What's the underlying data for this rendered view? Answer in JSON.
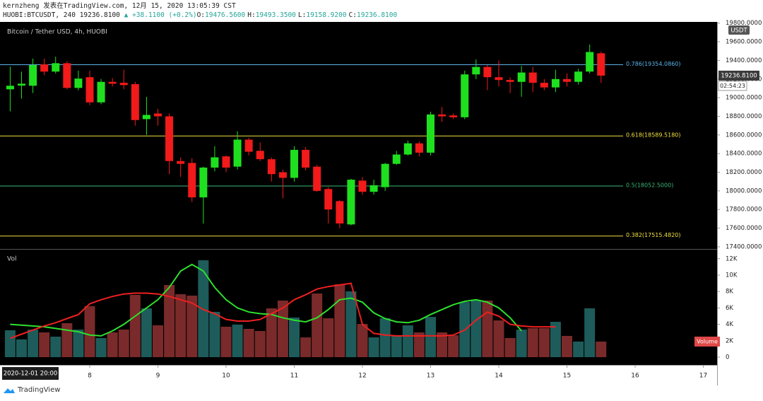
{
  "header": {
    "author_line": "kernzheng 发表在TradingView.com, 12月 15, 2020 13:05:39 CST",
    "symbol": "HUOBI:BTCUSDT, 240",
    "last": "19236.8100",
    "change": "▲ +38.1100 (+0.2%)",
    "ohlc": [
      {
        "label": "O:",
        "value": "19476.5600"
      },
      {
        "label": "H:",
        "value": "19493.3500"
      },
      {
        "label": "L:",
        "value": "19158.9200"
      },
      {
        "label": "C:",
        "value": "19236.8100"
      }
    ]
  },
  "chart_data": {
    "type": "candlestick",
    "title": "Bitcoin / Tether USD, 4h, HUOBI",
    "currency": "USDT",
    "up_color": "#1fe01f",
    "down_color": "#f21a1a",
    "x": [
      6.8333,
      7,
      7.1667,
      7.3333,
      7.5,
      7.6667,
      7.8333,
      8,
      8.1667,
      8.3333,
      8.5,
      8.6667,
      8.8333,
      9,
      9.1667,
      9.3333,
      9.5,
      9.6667,
      9.8333,
      10,
      10.1667,
      10.3333,
      10.5,
      10.6667,
      10.8333,
      11,
      11.1667,
      11.3333,
      11.5,
      11.6667,
      11.8333,
      12,
      12.1667,
      12.3333,
      12.5,
      12.6667,
      12.8333,
      13,
      13.1667,
      13.3333,
      13.5,
      13.6667,
      13.8333,
      14,
      14.1667,
      14.3333,
      14.5,
      14.6667,
      14.8333,
      15,
      15.1667,
      15.3333,
      15.5
    ],
    "open": [
      19090,
      19130,
      19128,
      19357,
      19280,
      19370,
      19105,
      19220,
      18950,
      19170,
      19160,
      19145,
      18770,
      18830,
      18800,
      18320,
      18300,
      17930,
      18250,
      18370,
      18260,
      18550,
      18430,
      18340,
      18200,
      18140,
      18440,
      18260,
      18020,
      17890,
      17640,
      18110,
      17990,
      18040,
      18290,
      18390,
      18510,
      18410,
      18820,
      18810,
      18790,
      19250,
      19330,
      19220,
      19190,
      19170,
      19270,
      19160,
      19110,
      19200,
      19170,
      19280,
      19476.56
    ],
    "high": [
      19334,
      19280,
      19420,
      19420,
      19440,
      19390,
      19290,
      19290,
      19200,
      19210,
      19300,
      19170,
      19010,
      18880,
      18830,
      18360,
      18350,
      18260,
      18480,
      18380,
      18640,
      18570,
      18520,
      18360,
      18230,
      18480,
      18470,
      18280,
      18040,
      17900,
      18130,
      18150,
      18120,
      18300,
      18430,
      18540,
      18530,
      18850,
      18900,
      18830,
      19290,
      19410,
      19350,
      19400,
      19220,
      19340,
      19330,
      19200,
      19300,
      19260,
      19310,
      19570,
      19493.35
    ],
    "low": [
      18854,
      18990,
      19050,
      19240,
      19260,
      19090,
      19080,
      18920,
      18930,
      19120,
      19090,
      18700,
      18600,
      18700,
      18180,
      18150,
      17880,
      17650,
      18210,
      18200,
      18230,
      18380,
      18320,
      18100,
      17920,
      18100,
      18220,
      17990,
      17650,
      17600,
      17630,
      17960,
      17960,
      18000,
      18280,
      18380,
      18370,
      18380,
      18740,
      18770,
      18770,
      19200,
      19080,
      19120,
      19050,
      19010,
      19060,
      19080,
      19060,
      19120,
      19140,
      19260,
      19158.92
    ],
    "close": [
      19128,
      19150,
      19350,
      19280,
      19370,
      19105,
      19205,
      18950,
      19170,
      19150,
      19135,
      18760,
      18815,
      18800,
      18320,
      18290,
      17930,
      18250,
      18360,
      18250,
      18550,
      18420,
      18340,
      18180,
      18140,
      18440,
      18250,
      18000,
      17800,
      17650,
      18120,
      17990,
      18060,
      18290,
      18390,
      18510,
      18410,
      18820,
      18800,
      18790,
      19250,
      19330,
      19220,
      19190,
      19170,
      19270,
      19160,
      19110,
      19200,
      19170,
      19280,
      19490,
      19236.81
    ],
    "last_label": "19236.8100",
    "countdown": "02:54:23",
    "crosshair_label": "2020-12-01  20:00",
    "xlim": [
      6.684,
      17.202
    ],
    "xticks": [
      8,
      9,
      10,
      11,
      12,
      13,
      14,
      15,
      16,
      17
    ],
    "ylim": [
      17392,
      19813
    ],
    "yticks": [
      {
        "value": 17400,
        "label": "17400.0000"
      },
      {
        "value": 17600,
        "label": "17600.0000"
      },
      {
        "value": 17800,
        "label": "17800.0000"
      },
      {
        "value": 18000,
        "label": "18000.0000"
      },
      {
        "value": 18200,
        "label": "18200.0000"
      },
      {
        "value": 18400,
        "label": "18400.0000"
      },
      {
        "value": 18600,
        "label": "18600.0000"
      },
      {
        "value": 18800,
        "label": "18800.0000"
      },
      {
        "value": 19000,
        "label": "19000.0000"
      },
      {
        "value": 19200,
        "label": "19200.0000"
      },
      {
        "value": 19400,
        "label": "19400.0000"
      },
      {
        "value": 19600,
        "label": "19600.0000"
      },
      {
        "value": 19800,
        "label": "19800.0000"
      }
    ],
    "annotations": [
      {
        "label": "0.786(19354.0860)",
        "value": 19354.086,
        "color": "#5ab4ea"
      },
      {
        "label": "0.618(18589.5180)",
        "value": 18589.518,
        "color": "#f0e040"
      },
      {
        "label": "0.5(18052.5000)",
        "value": 18052.5,
        "color": "#3cb878"
      },
      {
        "label": "0.382(17515.4820)",
        "value": 17515.482,
        "color": "#f0e040"
      }
    ],
    "volume": {
      "title": "Vol",
      "label": "Volume",
      "up_color": "#1d5c5a",
      "down_color": "#7a2a2a",
      "values": [
        3280,
        2160,
        3360,
        3020,
        2500,
        4140,
        3360,
        6210,
        2330,
        3020,
        3360,
        7590,
        5950,
        3880,
        8790,
        7670,
        7500,
        11810,
        5520,
        3710,
        3970,
        3450,
        3190,
        5950,
        6900,
        4830,
        2410,
        7760,
        4740,
        8880,
        8020,
        4050,
        2410,
        4740,
        2670,
        3880,
        3020,
        4910,
        3020,
        2670,
        6720,
        6900,
        6900,
        4480,
        2330,
        3360,
        3530,
        3530,
        4310,
        2590,
        1900,
        5950,
        1900
      ],
      "lines": [
        {
          "color": "#2ee02e",
          "values": [
            4000,
            3900,
            3800,
            3700,
            3500,
            3300,
            3100,
            2700,
            2600,
            3200,
            4000,
            5000,
            6000,
            7000,
            8500,
            10500,
            11300,
            10500,
            8500,
            7000,
            6000,
            5500,
            5300,
            5200,
            4800,
            4500,
            4300,
            4800,
            5800,
            7000,
            7200,
            6700,
            5400,
            4700,
            4300,
            4200,
            4500,
            5200,
            5800,
            6400,
            6800,
            7000,
            6700,
            6000,
            4800,
            3200,
            null,
            null,
            null,
            null,
            null,
            null,
            null
          ]
        },
        {
          "color": "#ee2020",
          "values": [
            2300,
            2800,
            3300,
            3800,
            4200,
            4700,
            5200,
            6500,
            7000,
            7400,
            7700,
            7800,
            7800,
            7700,
            7400,
            7000,
            6600,
            5800,
            5300,
            4600,
            4400,
            4400,
            4600,
            5300,
            6000,
            7000,
            7600,
            8300,
            8600,
            8800,
            9000,
            4000,
            2900,
            2700,
            2600,
            2600,
            2600,
            2600,
            2600,
            2700,
            3300,
            4500,
            5500,
            5000,
            4000,
            3800,
            3700,
            3700,
            3700,
            null,
            null,
            null,
            null
          ]
        }
      ],
      "ylim": [
        -860,
        12930
      ],
      "yticks": [
        0,
        {
          "value": 2000,
          "label": "2K"
        },
        {
          "value": 4000,
          "label": "4K"
        },
        {
          "value": 6000,
          "label": "6K"
        },
        {
          "value": 8000,
          "label": "8K"
        },
        {
          "value": 10000,
          "label": "10K"
        },
        {
          "value": 12000,
          "label": "12K"
        }
      ]
    }
  },
  "footer": {
    "brand": "TradingView"
  }
}
